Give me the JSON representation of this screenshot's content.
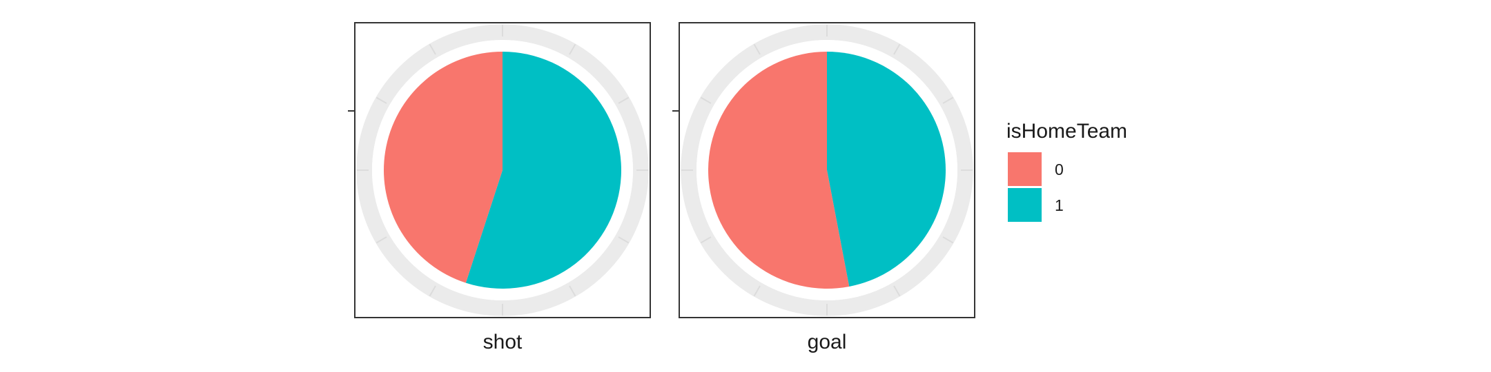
{
  "chart_data": {
    "type": "pie",
    "fill_variable": "isHomeTeam",
    "colors": {
      "0": "#F8766D",
      "1": "#00BFC4"
    },
    "facets": [
      {
        "name": "shot",
        "slices": [
          {
            "category": "0",
            "share": 0.45
          },
          {
            "category": "1",
            "share": 0.55
          }
        ]
      },
      {
        "name": "goal",
        "slices": [
          {
            "category": "0",
            "share": 0.53
          },
          {
            "category": "1",
            "share": 0.47
          }
        ]
      }
    ],
    "legend": {
      "title": "isHomeTeam",
      "position": "right",
      "entries": [
        {
          "label": "0",
          "color": "#F8766D"
        },
        {
          "label": "1",
          "color": "#00BFC4"
        }
      ]
    },
    "panel_grid": "polar"
  }
}
